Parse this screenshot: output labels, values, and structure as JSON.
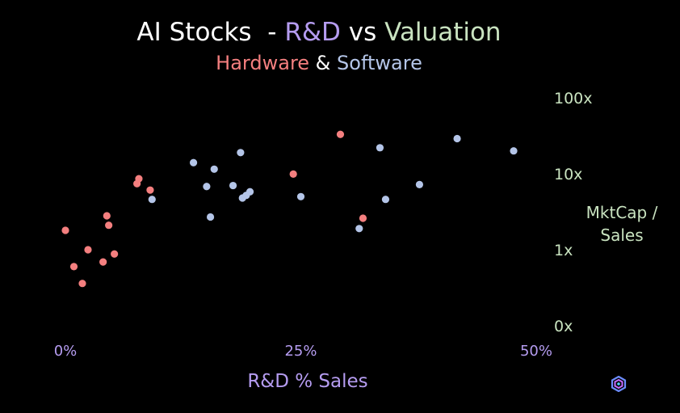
{
  "title": {
    "part1": "AI Stocks  - ",
    "part2": "R&D",
    "part3": " vs ",
    "part4": "Valuation"
  },
  "subtitle": {
    "part1": "Hardware",
    "part2": " & ",
    "part3": "Software"
  },
  "colors": {
    "background": "#000000",
    "title_text": "#ffffff",
    "rd_accent": "#b59cf0",
    "valuation_accent": "#c9e3c0",
    "hardware": "#f47f7f",
    "software": "#b4c5e8"
  },
  "chart_data": {
    "type": "scatter",
    "title": "AI Stocks  - R&D vs Valuation",
    "subtitle": "Hardware & Software",
    "xlabel": "R&D % Sales",
    "ylabel": "MktCap / Sales",
    "xlim": [
      0,
      50
    ],
    "ylim": [
      0.1,
      100
    ],
    "y_scale": "log",
    "x_ticks": [
      {
        "value": 0,
        "label": "0%"
      },
      {
        "value": 25,
        "label": "25%"
      },
      {
        "value": 50,
        "label": "50%"
      }
    ],
    "y_ticks": [
      {
        "value": 0.1,
        "label": "0x"
      },
      {
        "value": 1,
        "label": "1x"
      },
      {
        "value": 10,
        "label": "10x"
      },
      {
        "value": 100,
        "label": "100x"
      }
    ],
    "grid": false,
    "legend": "none",
    "series": [
      {
        "name": "Hardware",
        "color": "#f47f7f",
        "points": [
          {
            "x": 0,
            "y": 1.8
          },
          {
            "x": 0.9,
            "y": 0.6
          },
          {
            "x": 1.8,
            "y": 0.36
          },
          {
            "x": 2.4,
            "y": 1.0
          },
          {
            "x": 4.0,
            "y": 0.69
          },
          {
            "x": 4.4,
            "y": 2.8
          },
          {
            "x": 4.6,
            "y": 2.1
          },
          {
            "x": 5.2,
            "y": 0.88
          },
          {
            "x": 7.6,
            "y": 7.4
          },
          {
            "x": 7.8,
            "y": 8.6
          },
          {
            "x": 9.0,
            "y": 6.1
          },
          {
            "x": 24.2,
            "y": 9.9
          },
          {
            "x": 29.2,
            "y": 33
          },
          {
            "x": 31.6,
            "y": 2.6
          }
        ]
      },
      {
        "name": "Software",
        "color": "#b4c5e8",
        "points": [
          {
            "x": 9.2,
            "y": 4.6
          },
          {
            "x": 13.6,
            "y": 14
          },
          {
            "x": 15.0,
            "y": 6.8
          },
          {
            "x": 15.4,
            "y": 2.7
          },
          {
            "x": 15.8,
            "y": 11.5
          },
          {
            "x": 17.8,
            "y": 7.0
          },
          {
            "x": 18.6,
            "y": 19
          },
          {
            "x": 18.8,
            "y": 4.8
          },
          {
            "x": 19.2,
            "y": 5.2
          },
          {
            "x": 19.6,
            "y": 5.8
          },
          {
            "x": 25.0,
            "y": 5.0
          },
          {
            "x": 31.2,
            "y": 1.9
          },
          {
            "x": 33.4,
            "y": 22
          },
          {
            "x": 34.0,
            "y": 4.6
          },
          {
            "x": 37.6,
            "y": 7.2
          },
          {
            "x": 41.6,
            "y": 29
          },
          {
            "x": 47.6,
            "y": 20
          }
        ]
      }
    ]
  }
}
